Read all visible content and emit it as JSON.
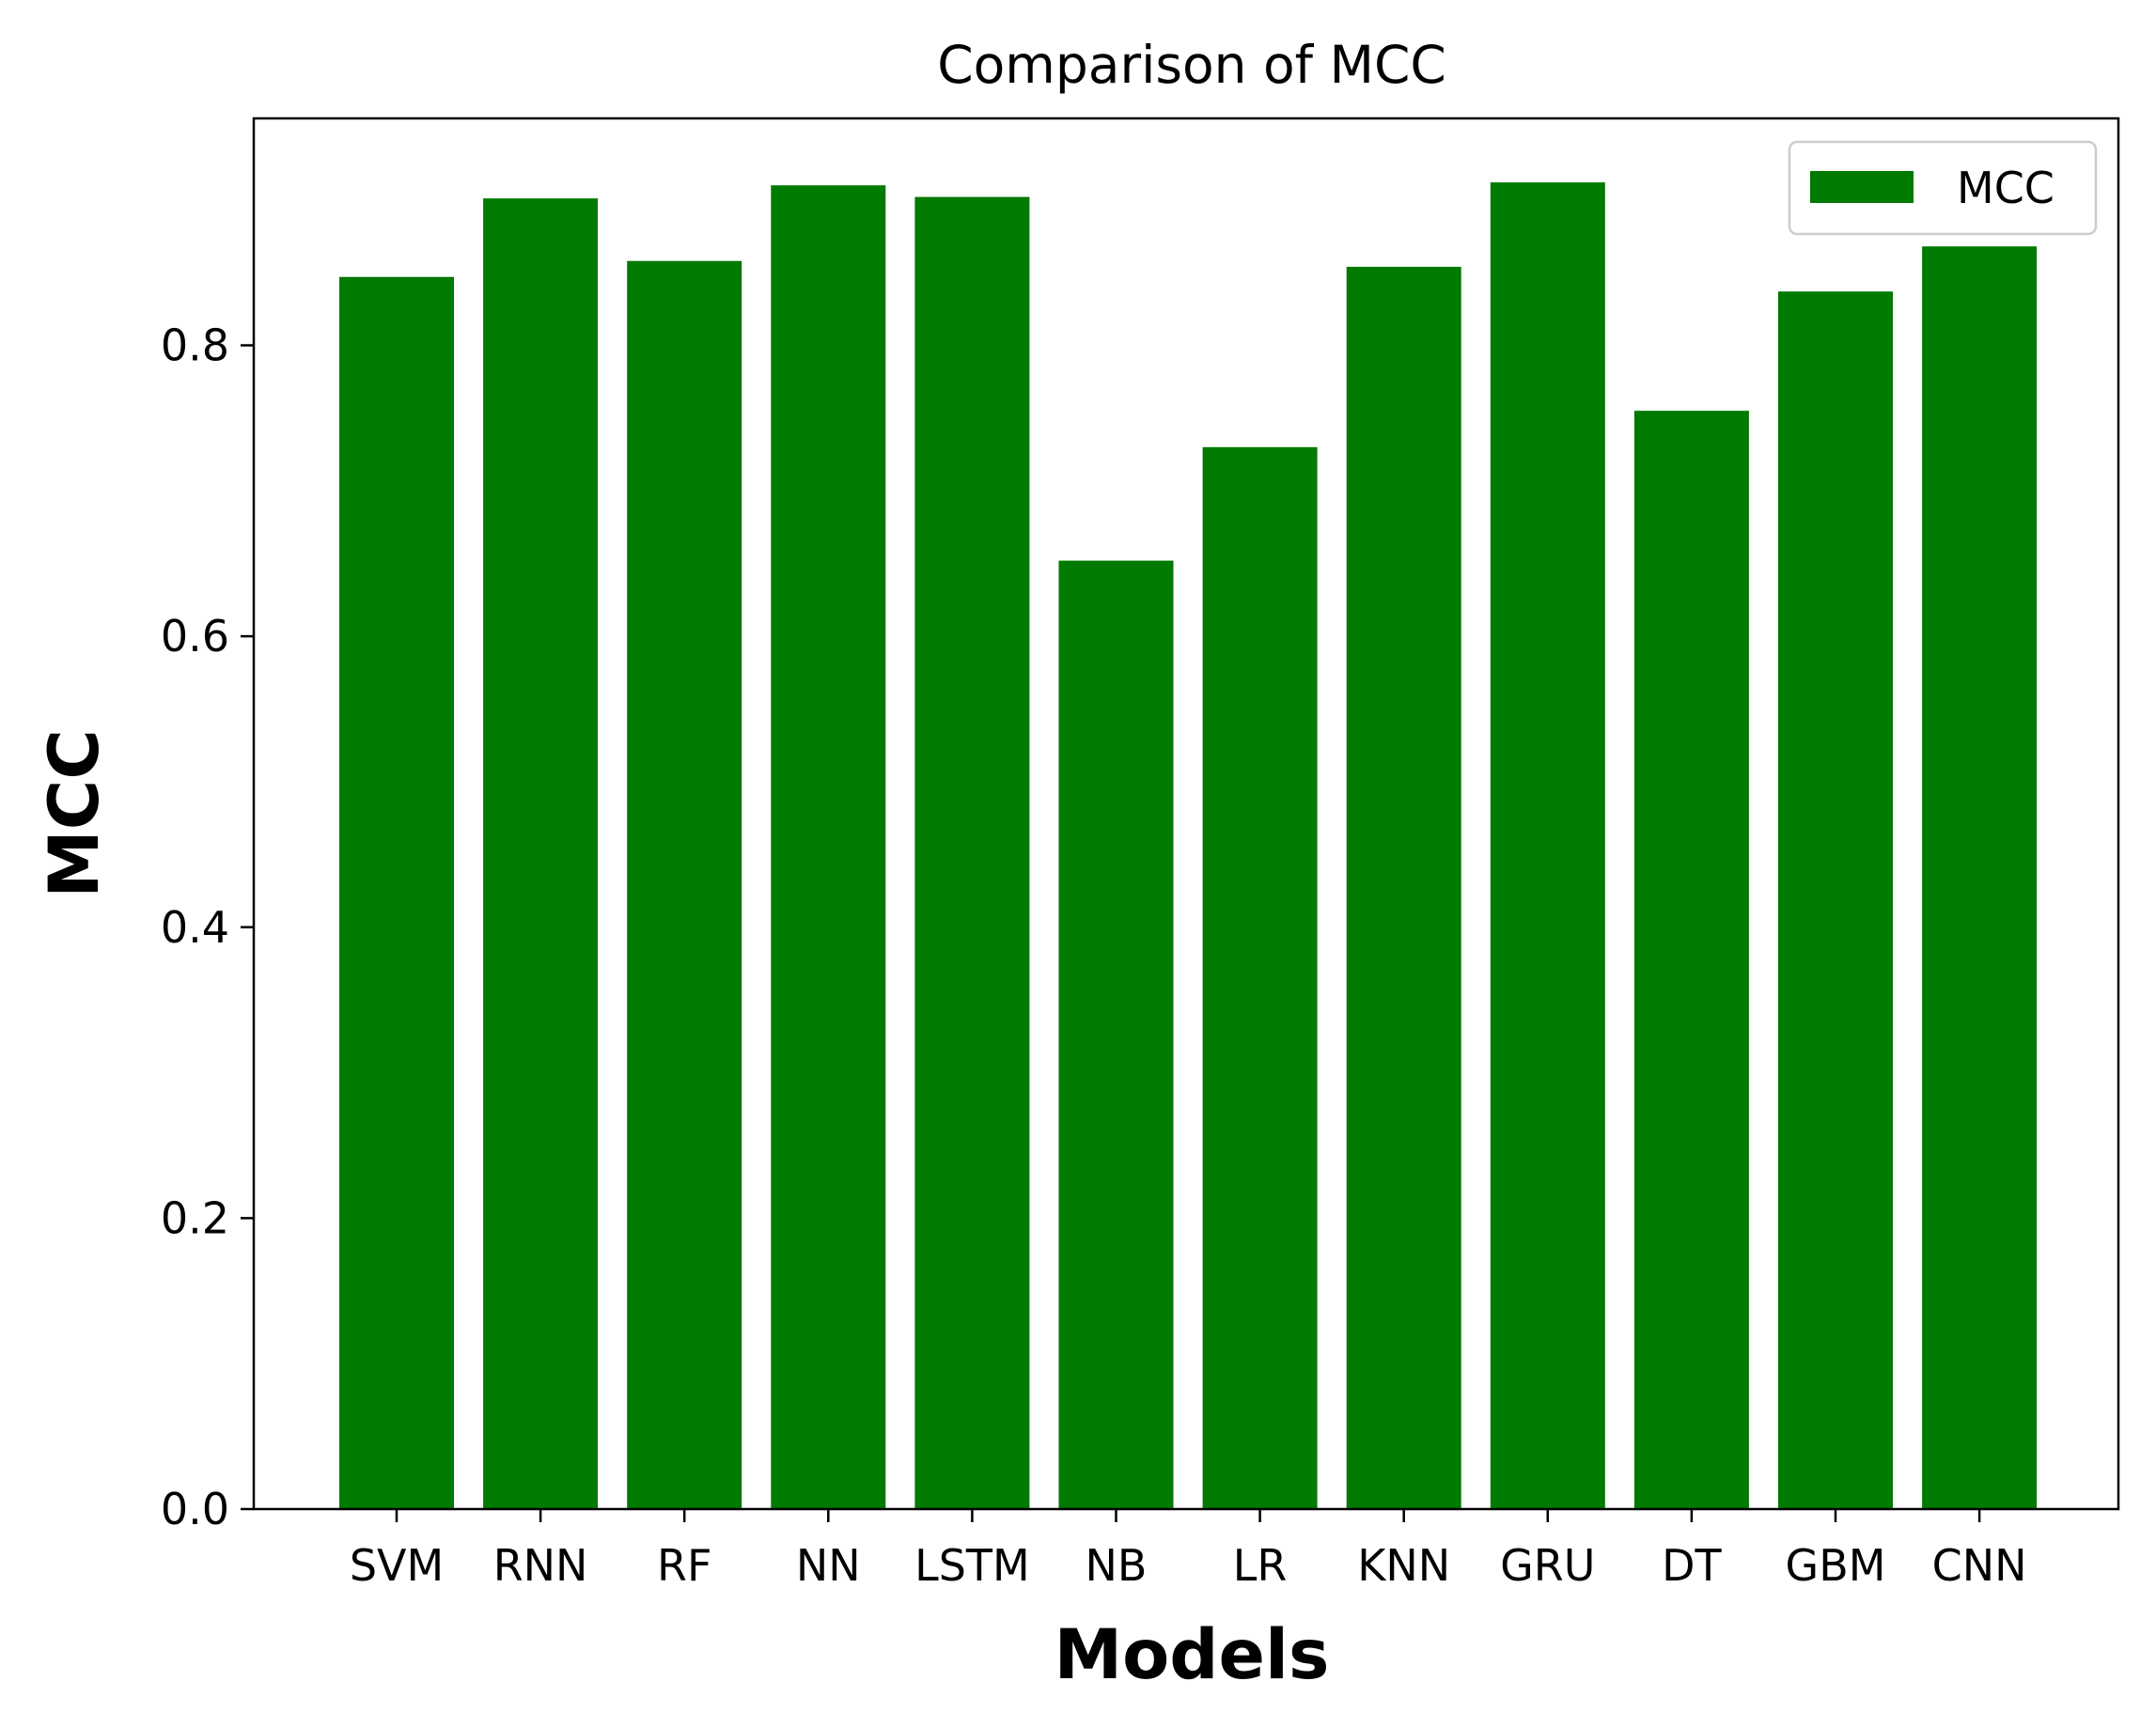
{
  "chart_data": {
    "type": "bar",
    "title": "Comparison of MCC",
    "xlabel": "Models",
    "ylabel": "MCC",
    "categories": [
      "SVM",
      "RNN",
      "RF",
      "NN",
      "LSTM",
      "NB",
      "LR",
      "KNN",
      "GRU",
      "DT",
      "GBM",
      "CNN"
    ],
    "series": [
      {
        "name": "MCC",
        "color": "#007a00",
        "values": [
          0.847,
          0.901,
          0.858,
          0.91,
          0.902,
          0.652,
          0.73,
          0.854,
          0.912,
          0.755,
          0.837,
          0.868
        ]
      }
    ],
    "ylim": [
      0,
      0.956
    ],
    "yticks": [
      "0.0",
      "0.2",
      "0.4",
      "0.6",
      "0.8"
    ],
    "ytick_values": [
      0,
      0.2,
      0.4,
      0.6,
      0.8
    ],
    "grid": false,
    "legend": "top-right"
  }
}
